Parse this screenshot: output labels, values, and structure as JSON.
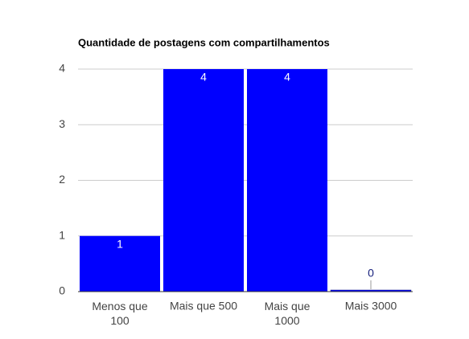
{
  "chart_data": {
    "type": "bar",
    "title": "Quantidade de postagens com compartilhamentos",
    "categories": [
      "Menos que 100",
      "Mais que 500",
      "Mais que 1000",
      "Mais 3000"
    ],
    "values": [
      1,
      4,
      4,
      0
    ],
    "color": "#0000ff",
    "ylim": [
      0,
      4
    ],
    "yticks": [
      0,
      1,
      2,
      3,
      4
    ],
    "grid": true
  }
}
